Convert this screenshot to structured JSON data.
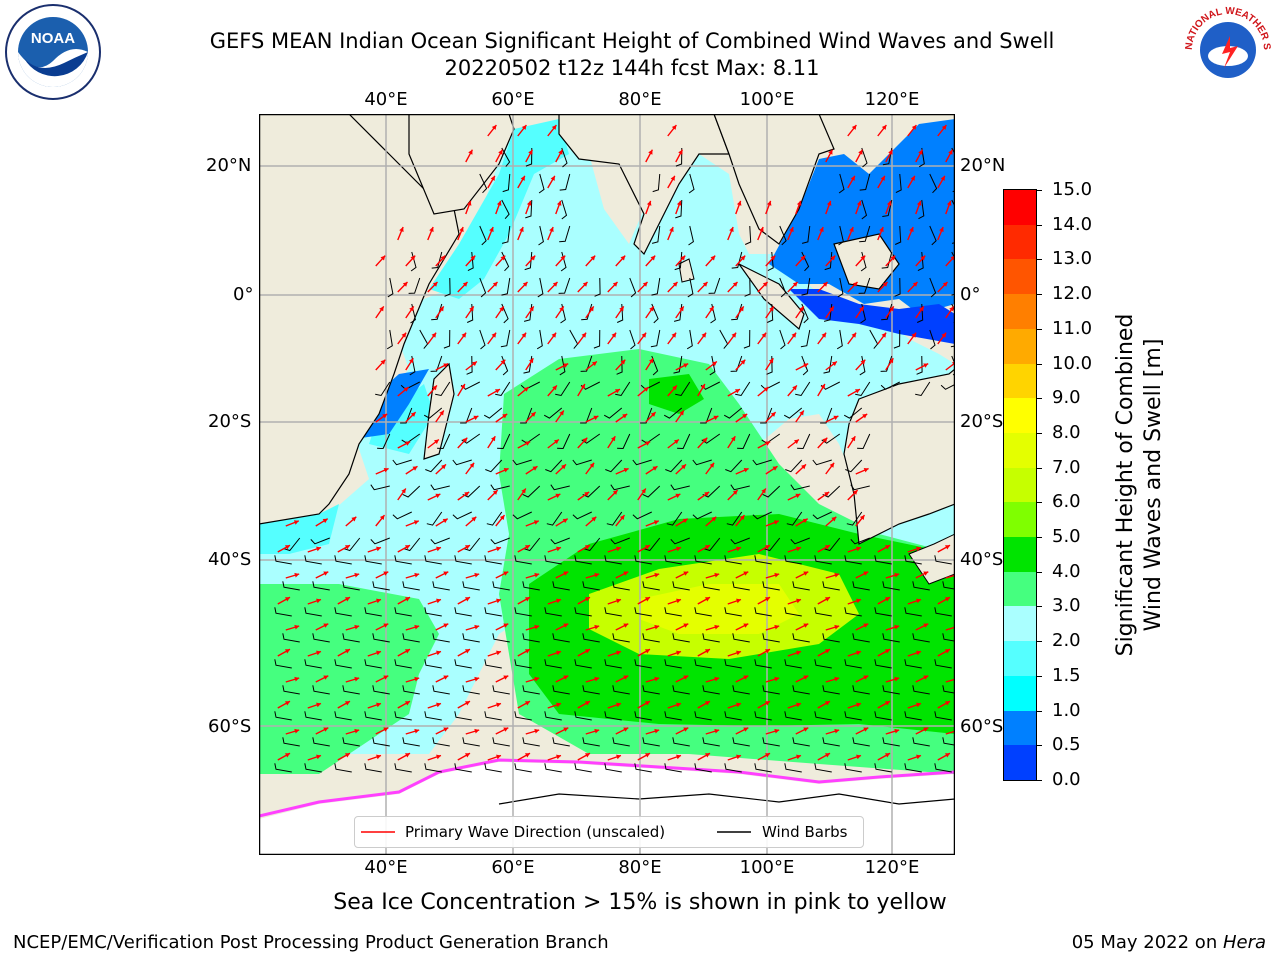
{
  "header": {
    "title_line1": "GEFS MEAN Indian Ocean Significant Height of Combined Wind Waves and Swell",
    "title_line2": "20220502 t12z 144h fcst   Max: 8.11"
  },
  "logos": {
    "left": {
      "name": "noaa-logo",
      "text": "NOAA"
    },
    "right": {
      "name": "nws-logo",
      "text": "NATIONAL WEATHER SERVICE"
    }
  },
  "map": {
    "lon_labels": [
      "40°E",
      "60°E",
      "80°E",
      "100°E",
      "120°E"
    ],
    "lat_labels_left": [
      "20°N",
      "0°",
      "20°S",
      "40°S",
      "60°S"
    ],
    "lat_labels_right": [
      "20°N",
      "0°",
      "20°S",
      "40°S",
      "60°S"
    ],
    "colors": {
      "land": "#efecdc",
      "ocean_low": "#aaffff",
      "grid": "#b0b0b0"
    },
    "legend": {
      "wave_label": "Primary Wave Direction (unscaled)",
      "barb_label": "Wind Barbs",
      "wave_color": "#ff0000",
      "barb_color": "#000000"
    }
  },
  "colorbar": {
    "label_line1": "Significant Height of Combined",
    "label_line2": "Wind Waves and Swell [m]",
    "ticks": [
      "15.0",
      "14.0",
      "13.0",
      "12.0",
      "11.0",
      "10.0",
      "9.0",
      "8.0",
      "7.0",
      "6.0",
      "5.0",
      "4.0",
      "3.0",
      "2.0",
      "1.5",
      "1.0",
      "0.5",
      "0.0"
    ],
    "colors_top_to_bottom": [
      "#ff0000",
      "#ff2a00",
      "#ff5500",
      "#ff7f00",
      "#ffaa00",
      "#ffd400",
      "#ffff00",
      "#e4ff00",
      "#c6ff00",
      "#7fff00",
      "#00e400",
      "#45ff7f",
      "#aaffff",
      "#55ffff",
      "#00ffff",
      "#0080ff",
      "#0040ff",
      "#0000ff"
    ]
  },
  "footer": {
    "subtitle": "Sea Ice Concentration > 15% is shown in pink to yellow",
    "left": "NCEP/EMC/Verification Post Processing Product Generation Branch",
    "right_date": "05 May 2022 on ",
    "right_host": "Hera"
  }
}
